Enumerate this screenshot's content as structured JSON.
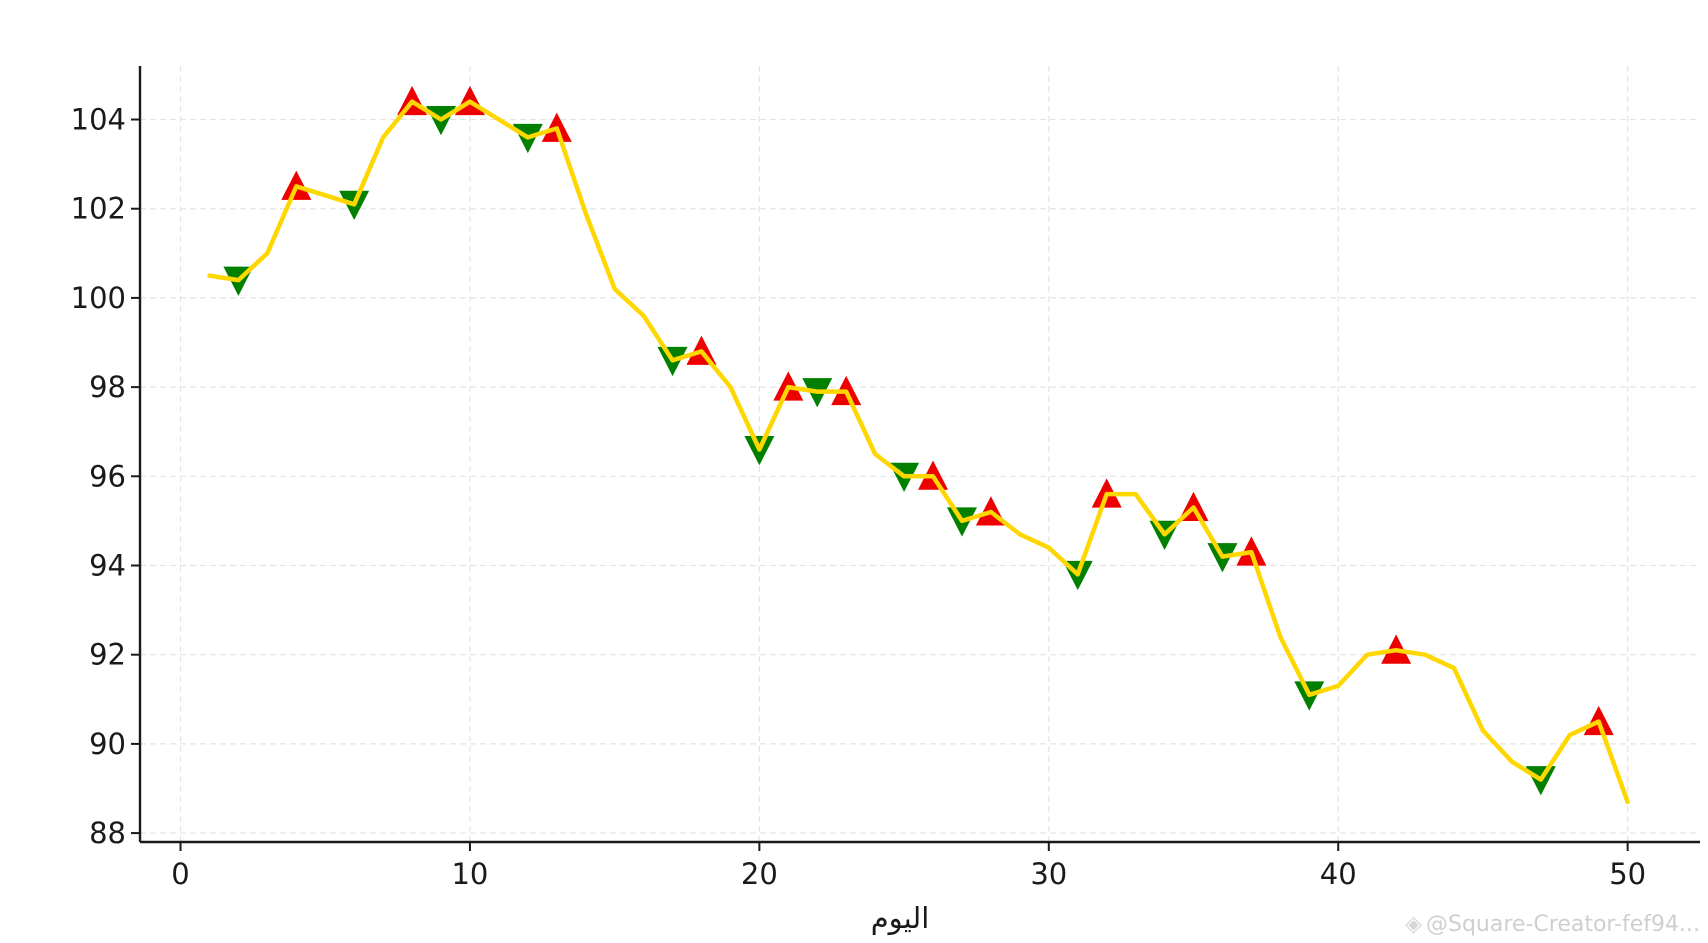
{
  "chart_data": {
    "type": "line",
    "title": "",
    "xlabel": "اليوم",
    "ylabel": "",
    "xlim": [
      -1.4,
      52.5
    ],
    "ylim": [
      87.8,
      105.2
    ],
    "xticks": [
      0,
      10,
      20,
      30,
      40,
      50
    ],
    "yticks": [
      88,
      90,
      92,
      94,
      96,
      98,
      100,
      102,
      104
    ],
    "grid": true,
    "line_color": "#FFD700",
    "up_marker_color": "#EE0000",
    "down_marker_color": "#007F00",
    "series": [
      {
        "x": [
          1,
          2,
          3,
          4,
          5,
          6,
          7,
          8,
          9,
          10,
          11,
          12,
          13,
          14,
          15,
          16,
          17,
          18,
          19,
          20,
          21,
          22,
          23,
          24,
          25,
          26,
          27,
          28,
          29,
          30,
          31,
          32,
          33,
          34,
          35,
          36,
          37,
          38,
          39,
          40,
          41,
          42,
          43,
          44,
          45,
          46,
          47,
          48,
          49,
          50
        ],
        "values": [
          100.5,
          100.4,
          101.0,
          102.5,
          102.3,
          102.1,
          103.6,
          104.4,
          104.0,
          104.4,
          104.0,
          103.6,
          103.8,
          101.9,
          100.2,
          99.6,
          98.6,
          98.8,
          98.0,
          96.6,
          98.0,
          97.9,
          97.9,
          96.5,
          96.0,
          96.0,
          95.0,
          95.2,
          94.7,
          94.4,
          93.8,
          95.6,
          95.6,
          94.7,
          95.3,
          94.2,
          94.3,
          92.4,
          91.1,
          91.3,
          92.0,
          92.1,
          92.0,
          91.7,
          90.3,
          89.6,
          89.2,
          90.2,
          90.5,
          88.7
        ]
      }
    ],
    "markers_up": {
      "x": [
        4,
        8,
        10,
        13,
        18,
        21,
        23,
        26,
        28,
        32,
        35,
        37,
        42,
        49
      ],
      "values": [
        102.5,
        104.4,
        104.4,
        103.8,
        98.8,
        98.0,
        97.9,
        96.0,
        95.2,
        95.6,
        95.3,
        94.3,
        92.1,
        90.5
      ]
    },
    "markers_down": {
      "x": [
        2,
        6,
        9,
        12,
        17,
        20,
        22,
        25,
        27,
        31,
        34,
        36,
        39,
        47
      ],
      "values": [
        100.4,
        102.1,
        104.0,
        103.6,
        98.6,
        96.6,
        97.9,
        96.0,
        95.0,
        93.8,
        94.7,
        94.2,
        91.1,
        89.2
      ]
    }
  },
  "watermark": {
    "text": "@Square-Creator-fef94..."
  }
}
